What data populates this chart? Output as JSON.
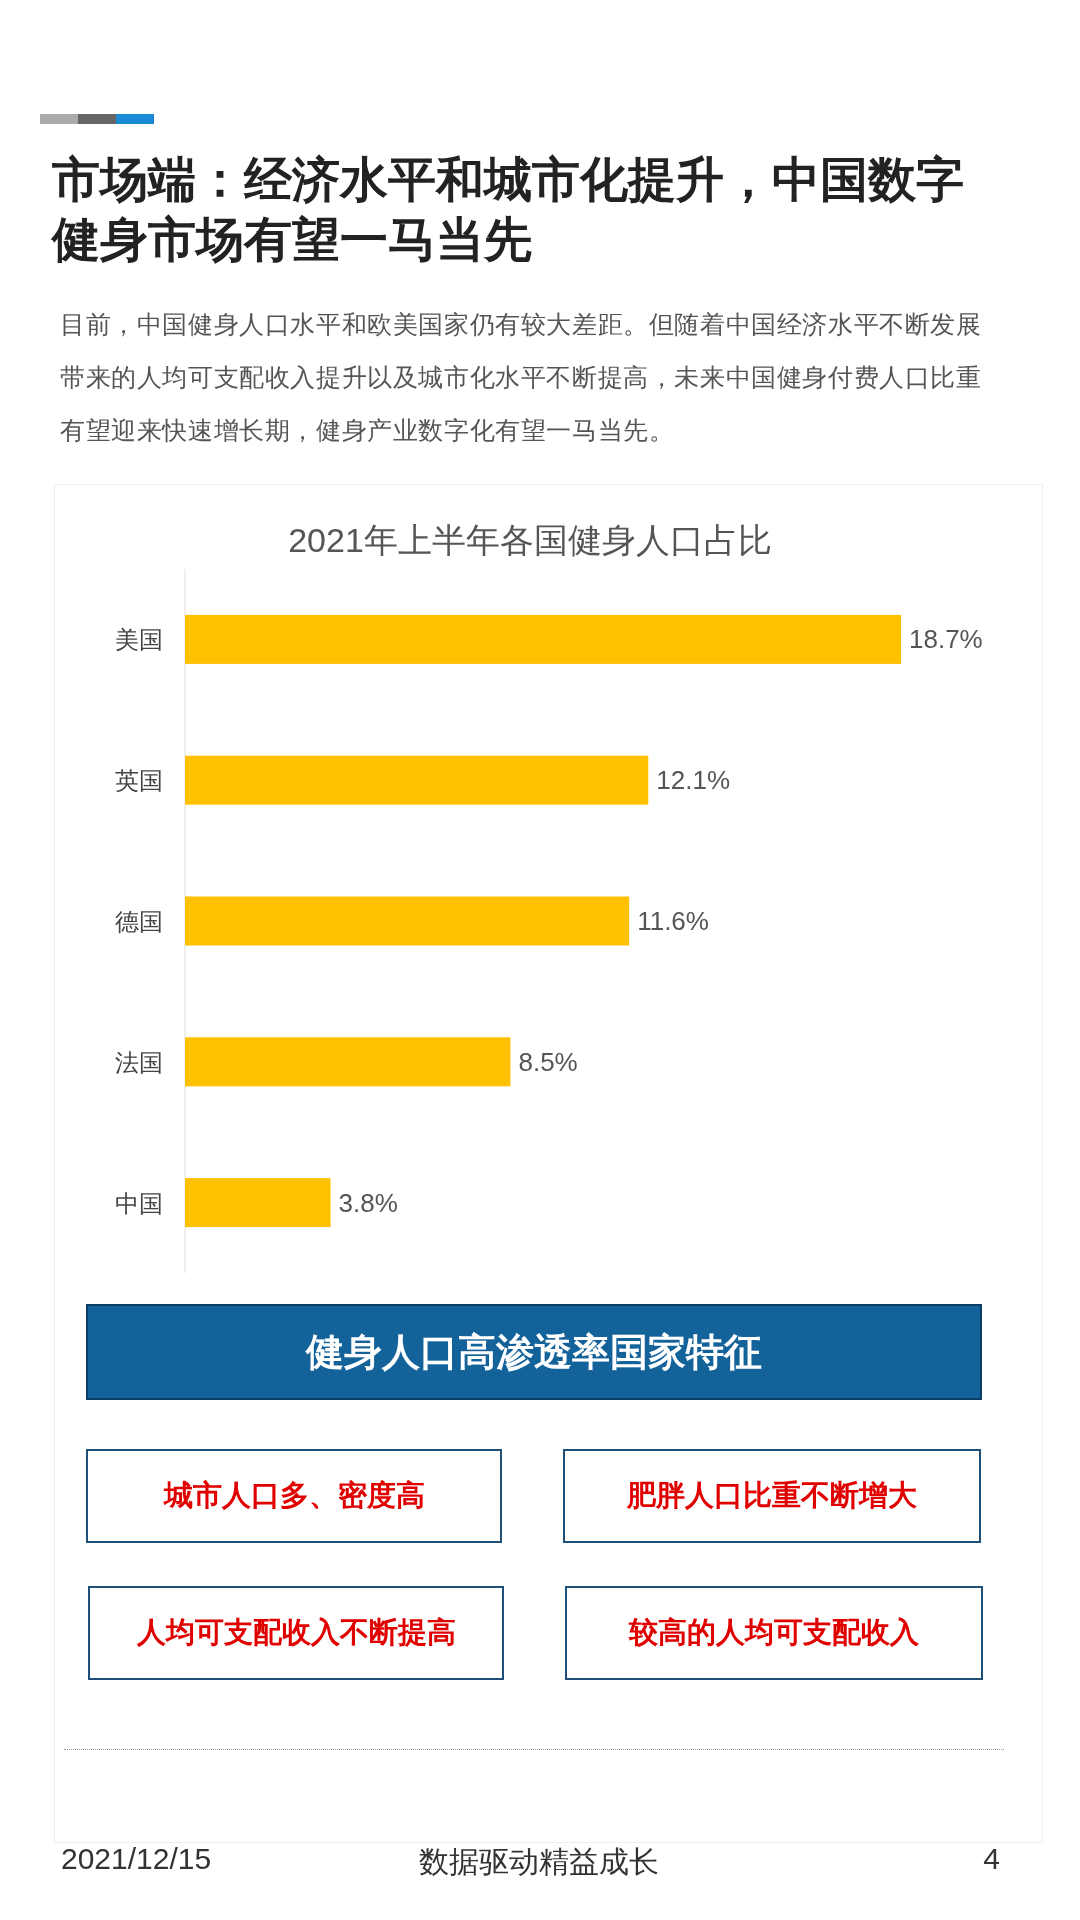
{
  "chart_data": {
    "type": "bar",
    "orientation": "horizontal",
    "title": "2021年上半年各国健身人口占比",
    "categories": [
      "美国",
      "英国",
      "德国",
      "法国",
      "中国"
    ],
    "values": [
      18.7,
      12.1,
      11.6,
      8.5,
      3.8
    ],
    "value_labels": [
      "18.7%",
      "12.1%",
      "11.6%",
      "8.5%",
      "3.8%"
    ],
    "color": "#ffc000",
    "annotations": [
      "市场端：经济水平和城市化提升，中国数字健身市场有望一马当先",
      "目前，中国健身人口水平和欧美国家仍有较大差距。但随着中国经济水平不断发展带来的人均可支配收入提升以及城市化水平不断提高，未来中国健身付费人口比重有望迎来快速增长期，健身产业数字化有望一马当先。",
      "健身人口高渗透率国家特征",
      "城市人口多、密度高",
      "肥胖人口比重不断增大",
      "人均可支配收入不断提高",
      "较高的人均可支配收入",
      "2021/12/15",
      "数据驱动精益成长",
      "4"
    ]
  }
}
